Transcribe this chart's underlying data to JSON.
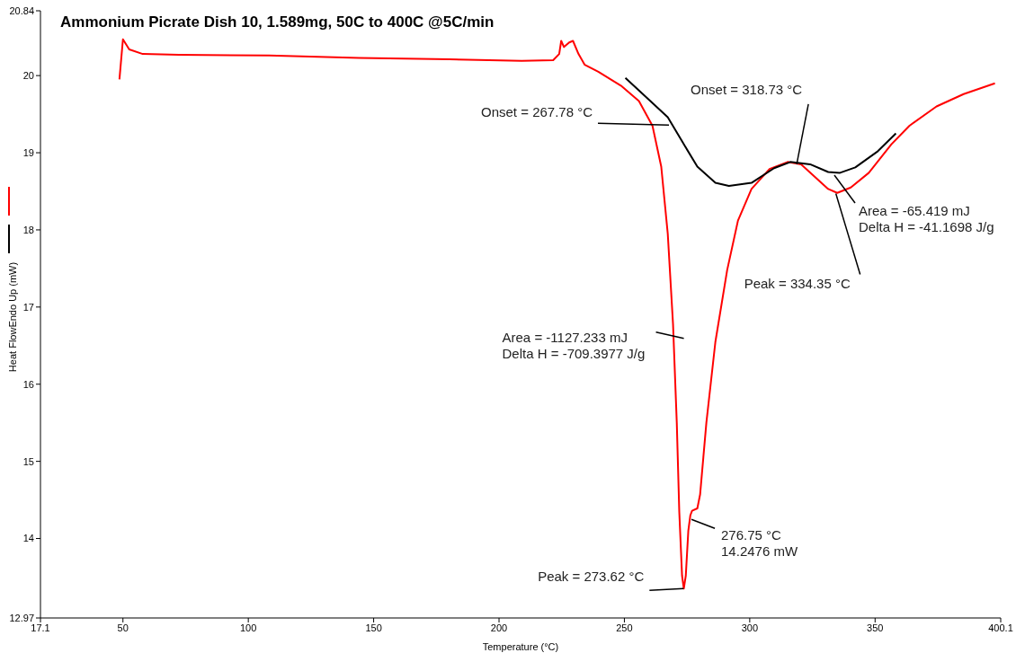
{
  "chart_data": {
    "type": "line",
    "title": "Ammonium Picrate Dish 10, 1.589mg, 50C to 400C @5C/min",
    "xlabel": "Temperature (°C)",
    "ylabel": "Heat FlowEndo Up (mW)",
    "xlim": [
      17.1,
      400.1
    ],
    "xticks": [
      17.1,
      50,
      100,
      150,
      200,
      250,
      300,
      350,
      400.1
    ],
    "ylim": [
      12.97,
      20.84
    ],
    "yticks": [
      12.97,
      14,
      15,
      16,
      17,
      18,
      19,
      20,
      20.84
    ],
    "series": [
      {
        "color": "#ff0000",
        "x": [
          48.6,
          50,
          52.5,
          57.9,
          72.3,
          108.3,
          144.2,
          180.2,
          209,
          221.6,
          224,
          224.8,
          225.9,
          228,
          229.5,
          231.7,
          234.2,
          239.6,
          248.6,
          255.8,
          261.2,
          264.7,
          267.3,
          269.4,
          270.9,
          271.9,
          273,
          273.7,
          274.5,
          275.5,
          276.3,
          277,
          279.1,
          280.2,
          282.7,
          286.3,
          291,
          295.3,
          300.7,
          307.9,
          315.1,
          320.5,
          325.9,
          331.3,
          334.9,
          340.3,
          347.5,
          356.5,
          363.7,
          374.5,
          385.3,
          397.8
        ],
        "values": [
          19.95,
          20.47,
          20.34,
          20.28,
          20.27,
          20.26,
          20.23,
          20.21,
          20.19,
          20.2,
          20.28,
          20.45,
          20.37,
          20.43,
          20.45,
          20.28,
          20.14,
          20.05,
          19.87,
          19.67,
          19.35,
          18.82,
          17.95,
          16.78,
          15.5,
          14.34,
          13.52,
          13.35,
          13.52,
          14.1,
          14.3,
          14.36,
          14.39,
          14.57,
          15.5,
          16.55,
          17.48,
          18.12,
          18.53,
          18.79,
          18.88,
          18.85,
          18.69,
          18.53,
          18.48,
          18.55,
          18.74,
          19.11,
          19.35,
          19.6,
          19.76,
          19.9
        ]
      },
      {
        "color": "#000000",
        "x": [
          250.4,
          259.4,
          267.3,
          273.7,
          279.1,
          286.3,
          291.7,
          300.7,
          309.7,
          316.2,
          324.1,
          331.3,
          336,
          342.1,
          351.1,
          358.3
        ],
        "values": [
          19.97,
          19.7,
          19.46,
          19.11,
          18.82,
          18.61,
          18.57,
          18.61,
          18.8,
          18.88,
          18.85,
          18.75,
          18.74,
          18.81,
          19.02,
          19.25
        ]
      }
    ],
    "annotations": [
      {
        "text": "Onset = 267.78 °C",
        "x": 267.78,
        "y": 19.36
      },
      {
        "text": "Onset = 318.73 °C",
        "x": 318.73,
        "y": 18.85
      },
      "Area = -65.419 mJ\nDelta H = -41.1698 J/g",
      {
        "text": "Peak = 334.35 °C",
        "x": 334.35,
        "y": 18.47
      },
      {
        "text": "Area = -1127.233 mJ\nDelta H = -709.3977 J/g",
        "x": 269.4,
        "y": 16.64
      },
      {
        "text": "Peak = 273.62 °C",
        "x": 273.62,
        "y": 13.35
      },
      {
        "text": "276.75 °C\n14.2476 mW",
        "x": 276.75,
        "y": 14.2476
      }
    ]
  }
}
